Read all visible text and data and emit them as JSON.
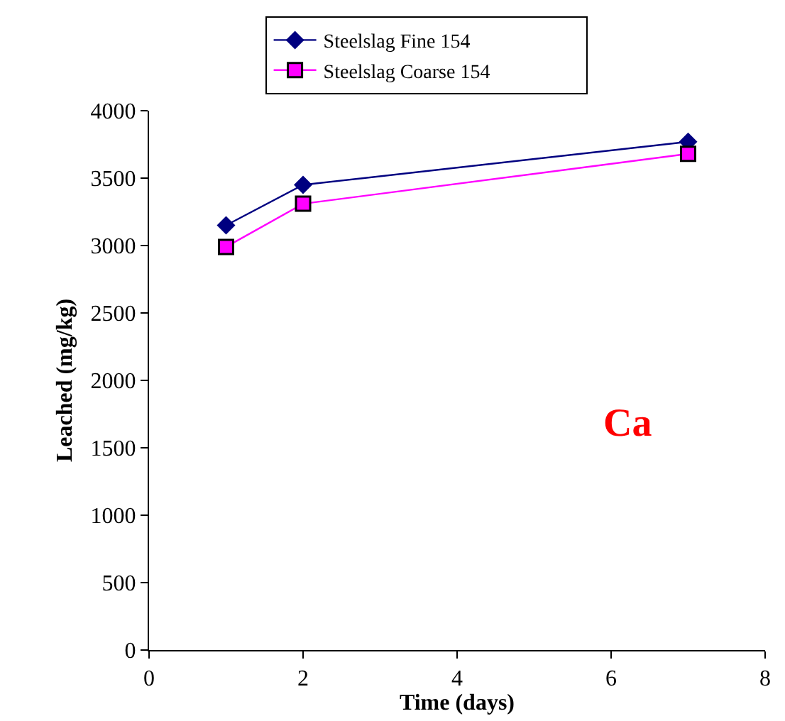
{
  "chart_data": {
    "type": "line",
    "xlabel": "Time (days)",
    "ylabel": "Leached (mg/kg)",
    "x": [
      1,
      2,
      7
    ],
    "series": [
      {
        "name": "Steelslag Fine 154",
        "color": "#000080",
        "values": [
          3150,
          3450,
          3770
        ],
        "marker": "diamond"
      },
      {
        "name": "Steelslag Coarse 154",
        "color": "#ff00ff",
        "values": [
          2990,
          3310,
          3680
        ],
        "marker": "square"
      }
    ],
    "annotations": [
      "Ca"
    ],
    "xlim": [
      0,
      8
    ],
    "xticks": [
      0,
      2,
      4,
      6,
      8
    ],
    "ylim": [
      0,
      4000
    ],
    "yticks": [
      0,
      500,
      1000,
      1500,
      2000,
      2500,
      3000,
      3500,
      4000
    ],
    "legend": "top",
    "line_style": "solid"
  }
}
